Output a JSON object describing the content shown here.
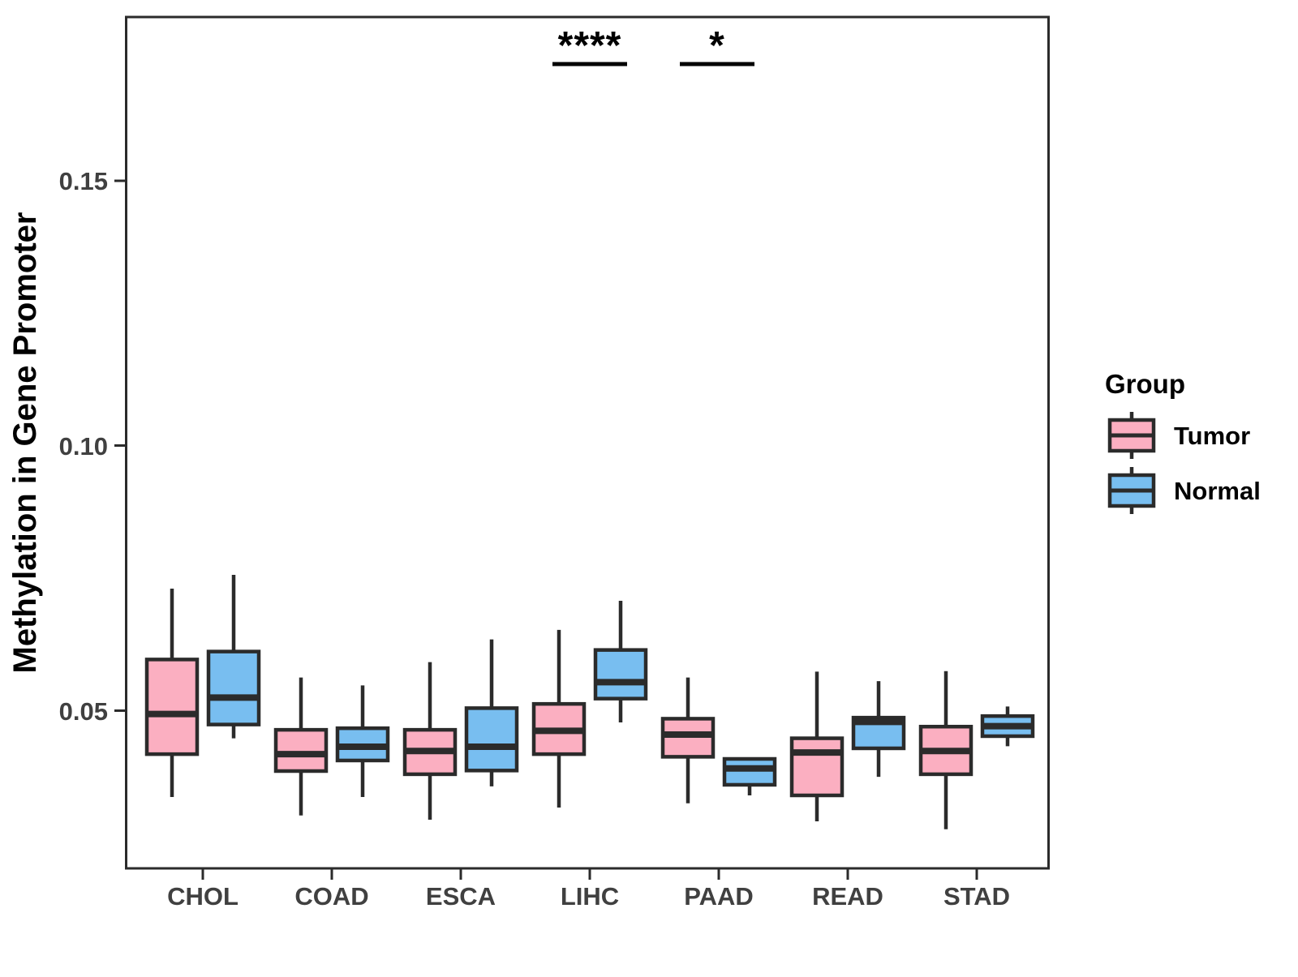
{
  "chart_data": {
    "type": "boxplot",
    "title": "",
    "xlabel": "",
    "ylabel": "Methylation in Gene Promoter",
    "categories": [
      "CHOL",
      "COAD",
      "ESCA",
      "LIHC",
      "PAAD",
      "READ",
      "STAD"
    ],
    "groups": [
      {
        "name": "Tumor",
        "color": "#FBAFC1"
      },
      {
        "name": "Normal",
        "color": "#78BEF0"
      }
    ],
    "ylim": [
      0.02,
      0.181
    ],
    "yticks": [
      "0.05",
      "0.10",
      "0.15"
    ],
    "ytick_values": [
      0.05,
      0.1,
      0.15
    ],
    "grid": false,
    "legend_position": "right",
    "series": [
      {
        "name": "Tumor",
        "boxes": [
          {
            "category": "CHOL",
            "whisker_low": 0.0335,
            "q1": 0.0416,
            "median": 0.0492,
            "q3": 0.0595,
            "whisker_high": 0.0729
          },
          {
            "category": "COAD",
            "whisker_low": 0.03,
            "q1": 0.0384,
            "median": 0.0416,
            "q3": 0.0462,
            "whisker_high": 0.0561
          },
          {
            "category": "ESCA",
            "whisker_low": 0.0292,
            "q1": 0.0378,
            "median": 0.0422,
            "q3": 0.0462,
            "whisker_high": 0.059
          },
          {
            "category": "LIHC",
            "whisker_low": 0.0315,
            "q1": 0.0416,
            "median": 0.046,
            "q3": 0.0511,
            "whisker_high": 0.0651
          },
          {
            "category": "PAAD",
            "whisker_low": 0.0323,
            "q1": 0.0411,
            "median": 0.0453,
            "q3": 0.0483,
            "whisker_high": 0.0561
          },
          {
            "category": "READ",
            "whisker_low": 0.0289,
            "q1": 0.0338,
            "median": 0.0419,
            "q3": 0.0446,
            "whisker_high": 0.0572
          },
          {
            "category": "STAD",
            "whisker_low": 0.0274,
            "q1": 0.0378,
            "median": 0.0422,
            "q3": 0.0468,
            "whisker_high": 0.0573
          }
        ]
      },
      {
        "name": "Normal",
        "boxes": [
          {
            "category": "CHOL",
            "whisker_low": 0.0446,
            "q1": 0.0472,
            "median": 0.0523,
            "q3": 0.061,
            "whisker_high": 0.0755
          },
          {
            "category": "COAD",
            "whisker_low": 0.0335,
            "q1": 0.0404,
            "median": 0.043,
            "q3": 0.0465,
            "whisker_high": 0.0546
          },
          {
            "category": "ESCA",
            "whisker_low": 0.0355,
            "q1": 0.0385,
            "median": 0.043,
            "q3": 0.0503,
            "whisker_high": 0.0633
          },
          {
            "category": "LIHC",
            "whisker_low": 0.0476,
            "q1": 0.0521,
            "median": 0.0552,
            "q3": 0.0613,
            "whisker_high": 0.0706
          },
          {
            "category": "PAAD",
            "whisker_low": 0.0338,
            "q1": 0.0358,
            "median": 0.0389,
            "q3": 0.0407,
            "whisker_high": 0.0407
          },
          {
            "category": "READ",
            "whisker_low": 0.0373,
            "q1": 0.0427,
            "median": 0.0477,
            "q3": 0.0485,
            "whisker_high": 0.0554
          },
          {
            "category": "STAD",
            "whisker_low": 0.0431,
            "q1": 0.045,
            "median": 0.0469,
            "q3": 0.0488,
            "whisker_high": 0.0506
          }
        ]
      }
    ],
    "annotations": [
      {
        "category": "LIHC",
        "label": "****"
      },
      {
        "category": "PAAD",
        "label": "*"
      }
    ],
    "legend": {
      "title": "Group",
      "entries": [
        "Tumor",
        "Normal"
      ]
    }
  },
  "style": {
    "tumor_color": "#FBAFC1",
    "normal_color": "#78BEF0",
    "stroke_color": "#2b2b2b",
    "axis_text_color": "#404040"
  }
}
